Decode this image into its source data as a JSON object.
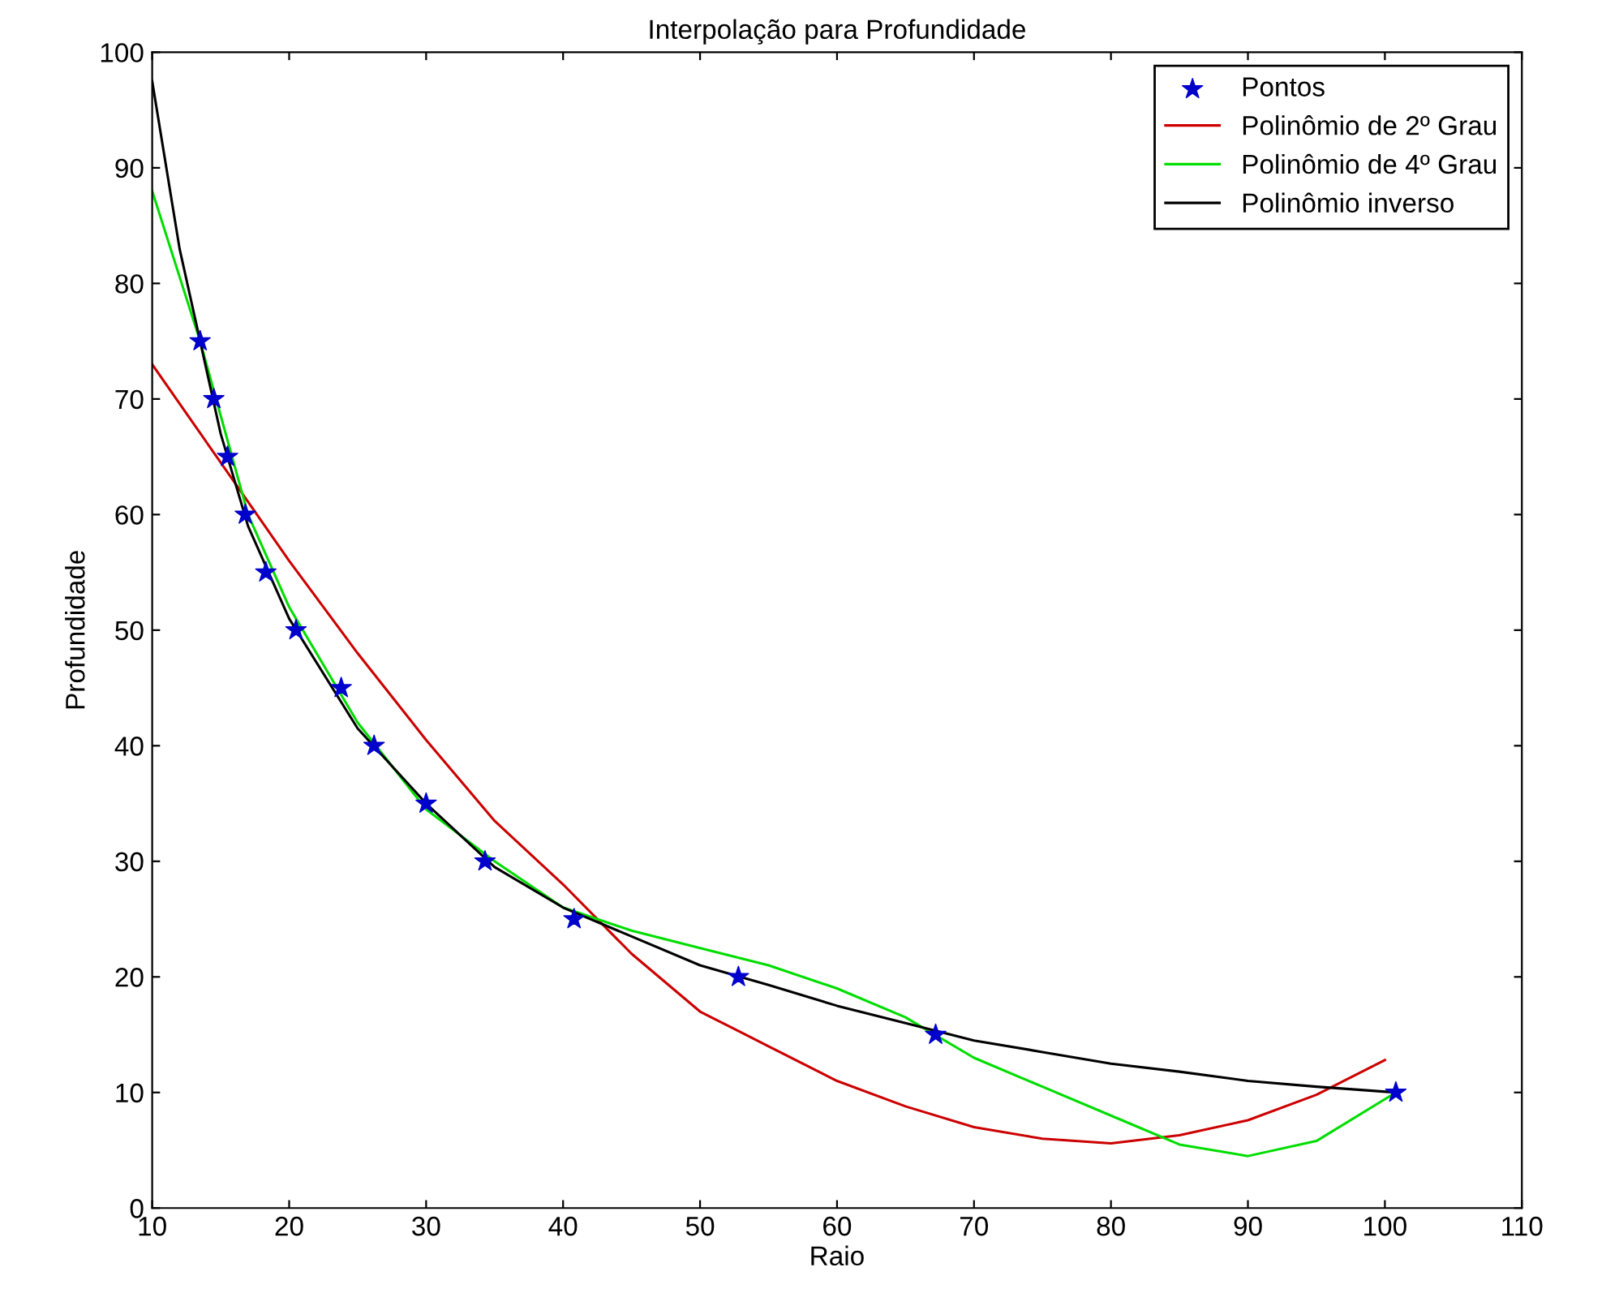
{
  "chart_data": {
    "type": "line",
    "title": "Interpolação para Profundidade",
    "xlabel": "Raio",
    "ylabel": "Profundidade",
    "xlim": [
      10,
      110
    ],
    "ylim": [
      0,
      100
    ],
    "xticks": [
      10,
      20,
      30,
      40,
      50,
      60,
      70,
      80,
      90,
      100,
      110
    ],
    "yticks": [
      0,
      10,
      20,
      30,
      40,
      50,
      60,
      70,
      80,
      90,
      100
    ],
    "grid": false,
    "legend": "top right",
    "series": [
      {
        "name": "Pontos",
        "type": "scatter",
        "marker": "star",
        "color": "#0000cc",
        "x": [
          13.5,
          14.5,
          15.5,
          16.8,
          18.3,
          20.5,
          23.8,
          26.2,
          30,
          34.3,
          40.8,
          52.8,
          67.2,
          100.8
        ],
        "values": [
          75,
          70,
          65,
          60,
          55,
          50,
          45,
          40,
          35,
          30,
          25,
          20,
          15,
          10
        ]
      },
      {
        "name": "Polinômio de 2º Grau",
        "color": "#cc0000",
        "x": [
          10,
          15,
          20,
          25,
          30,
          35,
          40,
          45,
          50,
          55,
          60,
          65,
          70,
          75,
          80,
          85,
          90,
          95,
          100
        ],
        "values": [
          73,
          64.5,
          56,
          48,
          40.5,
          33.5,
          28,
          22,
          17,
          14,
          11,
          8.8,
          7,
          6,
          5.6,
          6.3,
          7.6,
          9.8,
          12.8
        ]
      },
      {
        "name": "Polinômio de 4º Grau",
        "color": "#00dd00",
        "x": [
          10,
          13.5,
          17,
          20,
          25,
          30,
          35,
          40,
          45,
          50,
          55,
          60,
          65,
          70,
          75,
          80,
          85,
          90,
          95,
          100.8
        ],
        "values": [
          88,
          75,
          60,
          52,
          42,
          34.5,
          30,
          26,
          24,
          22.5,
          21,
          19,
          16.5,
          13,
          10.5,
          8,
          5.5,
          4.5,
          5.8,
          10
        ]
      },
      {
        "name": "Polinômio inverso",
        "color": "#000000",
        "x": [
          10,
          12,
          13.5,
          15,
          17,
          20,
          25,
          30,
          35,
          40,
          45,
          50,
          55,
          60,
          65,
          70,
          75,
          80,
          85,
          90,
          95,
          100.8
        ],
        "values": [
          97.5,
          83,
          75,
          67,
          59,
          51,
          41.5,
          35,
          29.5,
          26,
          23.5,
          21,
          19.3,
          17.5,
          16,
          14.5,
          13.5,
          12.5,
          11.8,
          11,
          10.5,
          10
        ]
      }
    ]
  }
}
